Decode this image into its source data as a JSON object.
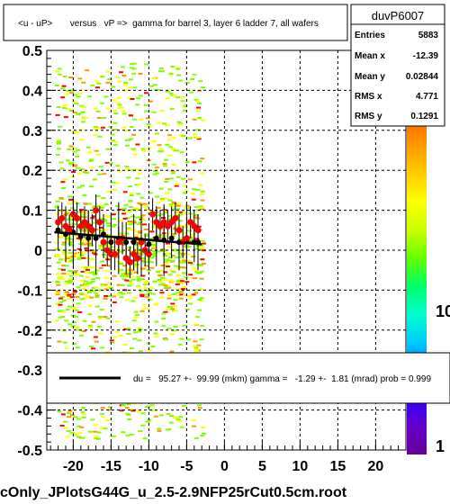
{
  "chart_data": {
    "type": "scatter",
    "title": "<u - uP>       versus   vP =>  gamma for barrel 3, layer 6 ladder 7, all wafers",
    "xlim": [
      -23.5,
      24
    ],
    "ylim": [
      -0.5,
      0.5
    ],
    "x_ticks": [
      -20,
      -15,
      -10,
      -5,
      0,
      5,
      10,
      15,
      20
    ],
    "x_tick_labels": [
      "-20",
      "-15",
      "-10",
      "-5",
      "0",
      "5",
      "10",
      "15",
      "20"
    ],
    "y_ticks": [
      0.5,
      0.4,
      0.3,
      0.2,
      0.1,
      0,
      -0.1,
      -0.2,
      -0.3,
      -0.4,
      -0.5
    ],
    "y_tick_labels": [
      "0.5",
      "0.4",
      "0.3",
      "0.2",
      "0.1",
      "0",
      "-0.1",
      "-0.2",
      "-0.3",
      "-0.4",
      "-0.5"
    ],
    "grid": true,
    "stats_box": {
      "name": "duvP6007",
      "rows": [
        {
          "label": "Entries",
          "value": "5883"
        },
        {
          "label": "Mean x",
          "value": "-12.39"
        },
        {
          "label": "Mean y",
          "value": "0.02844"
        },
        {
          "label": "RMS x",
          "value": "4.771"
        },
        {
          "label": "RMS y",
          "value": "0.1291"
        }
      ]
    },
    "fit_legend": "du =   95.27 +-  99.99 (mkm) gamma =   -1.29 +-  1.81 (mrad) prob = 0.999",
    "palette_labels": [
      "1",
      "10"
    ],
    "footer": "cOnly_JPlotsG44G_u_2.5-2.9NFP25rCut0.5cm.root",
    "fit_line": {
      "x": [
        -22.5,
        -3
      ],
      "y": [
        0.045,
        0.015
      ],
      "color": "#000000"
    },
    "red_series": {
      "x": [
        -22,
        -21.5,
        -21,
        -20.5,
        -20,
        -19.5,
        -19,
        -18.5,
        -18,
        -17.5,
        -17,
        -16.5,
        -16,
        -15.5,
        -15,
        -14.5,
        -14,
        -13.5,
        -13,
        -12.5,
        -12,
        -11.5,
        -11,
        -10.5,
        -10,
        -9.5,
        -9,
        -8.5,
        -8,
        -7.5,
        -7,
        -6.5,
        -6,
        -5.5,
        -5,
        -4.5,
        -4,
        -3.5
      ],
      "y": [
        0.07,
        0.08,
        0.06,
        0.05,
        0.09,
        0.08,
        0.06,
        0.07,
        0.06,
        0.05,
        0.1,
        0.07,
        0.02,
        0.0,
        -0.01,
        -0.01,
        0.02,
        0.03,
        -0.02,
        -0.03,
        -0.01,
        -0.02,
        0.02,
        0.0,
        -0.01,
        0.09,
        0.07,
        0.06,
        0.07,
        0.06,
        0.07,
        0.08,
        0.05,
        0.02,
        0.03,
        0.07,
        0.06,
        0.05
      ],
      "color": "#ff0000"
    },
    "black_series": {
      "x": [
        -22,
        -21,
        -20,
        -19,
        -18,
        -17,
        -16,
        -15,
        -14,
        -13,
        -12,
        -11,
        -10,
        -9,
        -8,
        -7,
        -6,
        -5,
        -4,
        -3.5
      ],
      "y": [
        0.05,
        0.04,
        0.045,
        0.035,
        0.03,
        0.03,
        0.04,
        0.02,
        0.03,
        0.02,
        0.02,
        0.025,
        0.015,
        0.03,
        0.025,
        0.03,
        0.02,
        0.025,
        0.02,
        0.02
      ],
      "color": "#000000"
    },
    "colors": {
      "green_band": "#7fff00",
      "yellow": "#ffff00",
      "orange": "#ff9900",
      "red": "#ff0000",
      "palette": [
        "#ff6600",
        "#ff9900",
        "#ffcc00",
        "#ffff00",
        "#ccff00",
        "#66ff00",
        "#00ff66",
        "#00ffcc",
        "#00ccff",
        "#0066ff",
        "#3300ff",
        "#6600cc",
        "#660099"
      ]
    }
  }
}
